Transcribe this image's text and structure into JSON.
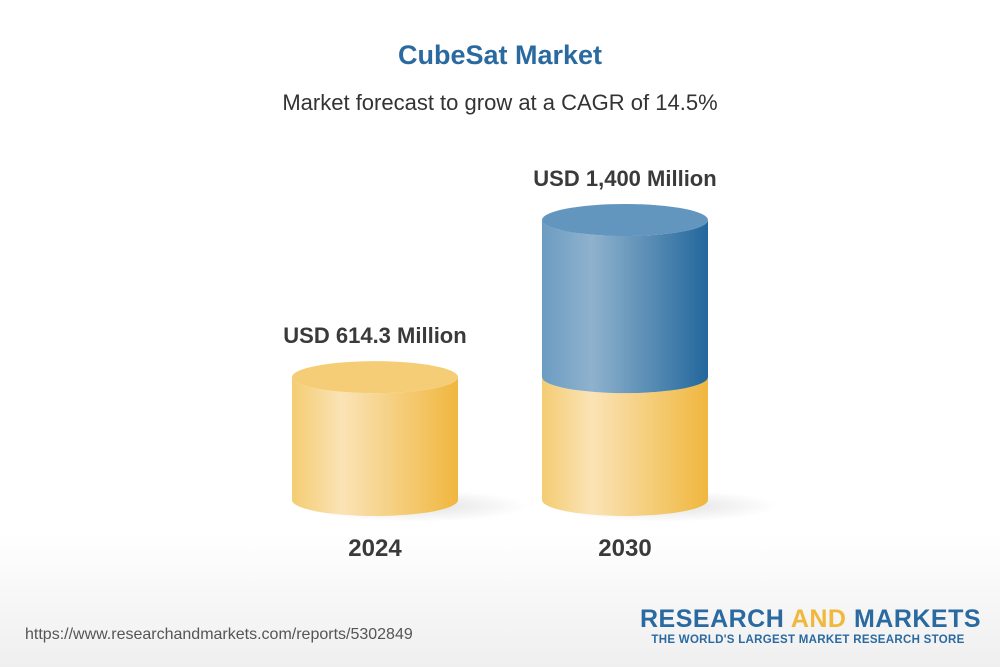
{
  "title": "CubeSat Market",
  "subtitle": "Market forecast to grow at a CAGR of 14.5%",
  "chart_data": {
    "type": "bar",
    "style": "3d-cylinder",
    "categories": [
      "2024",
      "2030"
    ],
    "values": [
      614.3,
      1400
    ],
    "data_labels": [
      "USD 614.3 Million",
      "USD 1,400 Million"
    ],
    "unit": "USD Million",
    "colors": {
      "base": "#f2c153",
      "growth": "#2a6aa0"
    }
  },
  "footer": {
    "url": "https://www.researchandmarkets.com/reports/5302849",
    "logo": {
      "part1": "RESEARCH ",
      "part2": "AND",
      "part3": " MARKETS",
      "tagline": "THE WORLD'S LARGEST MARKET RESEARCH STORE"
    }
  }
}
